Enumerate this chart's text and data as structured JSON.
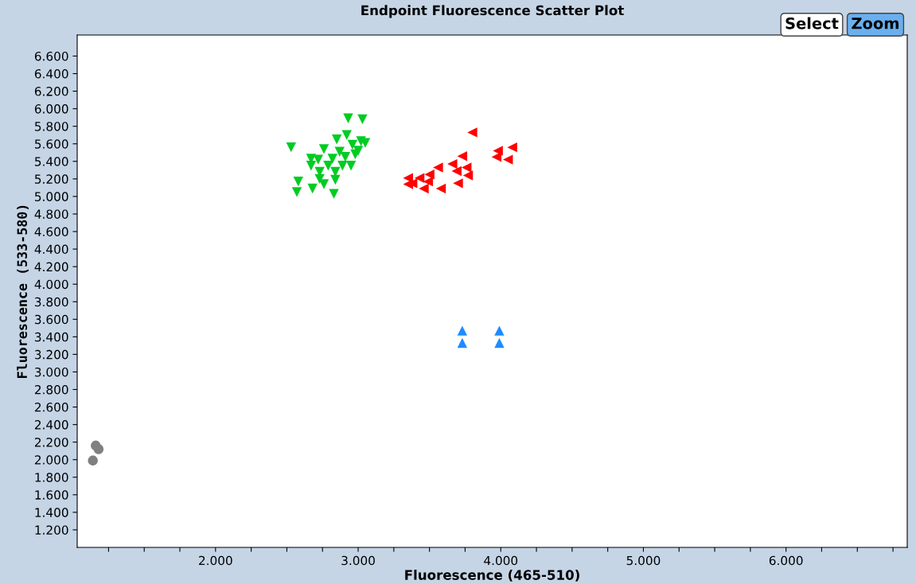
{
  "chart_data": {
    "type": "scatter",
    "title": "Endpoint Fluorescence Scatter Plot",
    "xlabel": "Fluorescence (465-510)",
    "ylabel": "Fluorescence (533-580)",
    "annotations": [
      "Select",
      "Zoom"
    ],
    "grid": false,
    "legend": false,
    "xlim": [
      1030,
      6850
    ],
    "ylim": [
      1000,
      6840
    ],
    "xticks": [
      {
        "value": 1250,
        "label": null
      },
      {
        "value": 1500,
        "label": null
      },
      {
        "value": 1750,
        "label": null
      },
      {
        "value": 2000,
        "label": "2.000"
      },
      {
        "value": 2250,
        "label": null
      },
      {
        "value": 2500,
        "label": null
      },
      {
        "value": 2750,
        "label": null
      },
      {
        "value": 3000,
        "label": "3.000"
      },
      {
        "value": 3250,
        "label": null
      },
      {
        "value": 3500,
        "label": null
      },
      {
        "value": 3750,
        "label": null
      },
      {
        "value": 4000,
        "label": "4.000"
      },
      {
        "value": 4250,
        "label": null
      },
      {
        "value": 4500,
        "label": null
      },
      {
        "value": 4750,
        "label": null
      },
      {
        "value": 5000,
        "label": "5.000"
      },
      {
        "value": 5250,
        "label": null
      },
      {
        "value": 5500,
        "label": null
      },
      {
        "value": 5750,
        "label": null
      },
      {
        "value": 6000,
        "label": "6.000"
      },
      {
        "value": 6250,
        "label": null
      },
      {
        "value": 6500,
        "label": null
      },
      {
        "value": 6750,
        "label": null
      }
    ],
    "yticks": [
      {
        "value": 1200,
        "label": "1.200"
      },
      {
        "value": 1400,
        "label": "1.400"
      },
      {
        "value": 1600,
        "label": "1.600"
      },
      {
        "value": 1800,
        "label": "1.800"
      },
      {
        "value": 2000,
        "label": "2.000"
      },
      {
        "value": 2200,
        "label": "2.200"
      },
      {
        "value": 2400,
        "label": "2.400"
      },
      {
        "value": 2600,
        "label": "2.600"
      },
      {
        "value": 2800,
        "label": "2.800"
      },
      {
        "value": 3000,
        "label": "3.000"
      },
      {
        "value": 3200,
        "label": "3.200"
      },
      {
        "value": 3400,
        "label": "3.400"
      },
      {
        "value": 3600,
        "label": "3.600"
      },
      {
        "value": 3800,
        "label": "3.800"
      },
      {
        "value": 4000,
        "label": "4.000"
      },
      {
        "value": 4200,
        "label": "4.200"
      },
      {
        "value": 4400,
        "label": "4.400"
      },
      {
        "value": 4600,
        "label": "4.600"
      },
      {
        "value": 4800,
        "label": "4.800"
      },
      {
        "value": 5000,
        "label": "5.000"
      },
      {
        "value": 5200,
        "label": "5.200"
      },
      {
        "value": 5400,
        "label": "5.400"
      },
      {
        "value": 5600,
        "label": "5.600"
      },
      {
        "value": 5800,
        "label": "5.800"
      },
      {
        "value": 6000,
        "label": "6.000"
      },
      {
        "value": 6200,
        "label": "6.200"
      },
      {
        "value": 6400,
        "label": "6.400"
      },
      {
        "value": 6600,
        "label": "6.600"
      }
    ],
    "series": [
      {
        "color": "#808080",
        "marker": "circle",
        "x": [
          1140,
          1160,
          1180
        ],
        "values": [
          1990,
          2160,
          2120
        ]
      },
      {
        "color": "#1e8cff",
        "marker": "triangle",
        "x": [
          3730,
          3990,
          3730,
          3990
        ],
        "values": [
          3470,
          3470,
          3330,
          3330
        ]
      },
      {
        "color": "#ff0000",
        "marker": "triangle-left",
        "x": [
          3800,
          3980,
          4080,
          3970,
          4050,
          3730,
          3660,
          3560,
          3760,
          3690,
          3770,
          3500,
          3430,
          3350,
          3490,
          3350,
          3700,
          3580,
          3460,
          3380
        ],
        "values": [
          5730,
          5520,
          5560,
          5450,
          5420,
          5460,
          5370,
          5330,
          5330,
          5290,
          5240,
          5250,
          5210,
          5210,
          5170,
          5140,
          5150,
          5090,
          5090,
          5150
        ]
      },
      {
        "color": "#00cc22",
        "marker": "triangle-down",
        "x": [
          2930,
          3030,
          2530,
          2920,
          3020,
          2850,
          2760,
          2870,
          2670,
          2720,
          2820,
          2910,
          2980,
          2670,
          2790,
          2890,
          2950,
          2730,
          2840,
          2730,
          2840,
          2580,
          2570,
          2680,
          2830,
          2760,
          2960,
          3050,
          3000
        ],
        "values": [
          5890,
          5880,
          5560,
          5700,
          5630,
          5650,
          5540,
          5510,
          5430,
          5420,
          5430,
          5450,
          5480,
          5350,
          5350,
          5350,
          5350,
          5280,
          5280,
          5200,
          5190,
          5170,
          5050,
          5090,
          5030,
          5140,
          5590,
          5610,
          5520
        ]
      }
    ]
  }
}
